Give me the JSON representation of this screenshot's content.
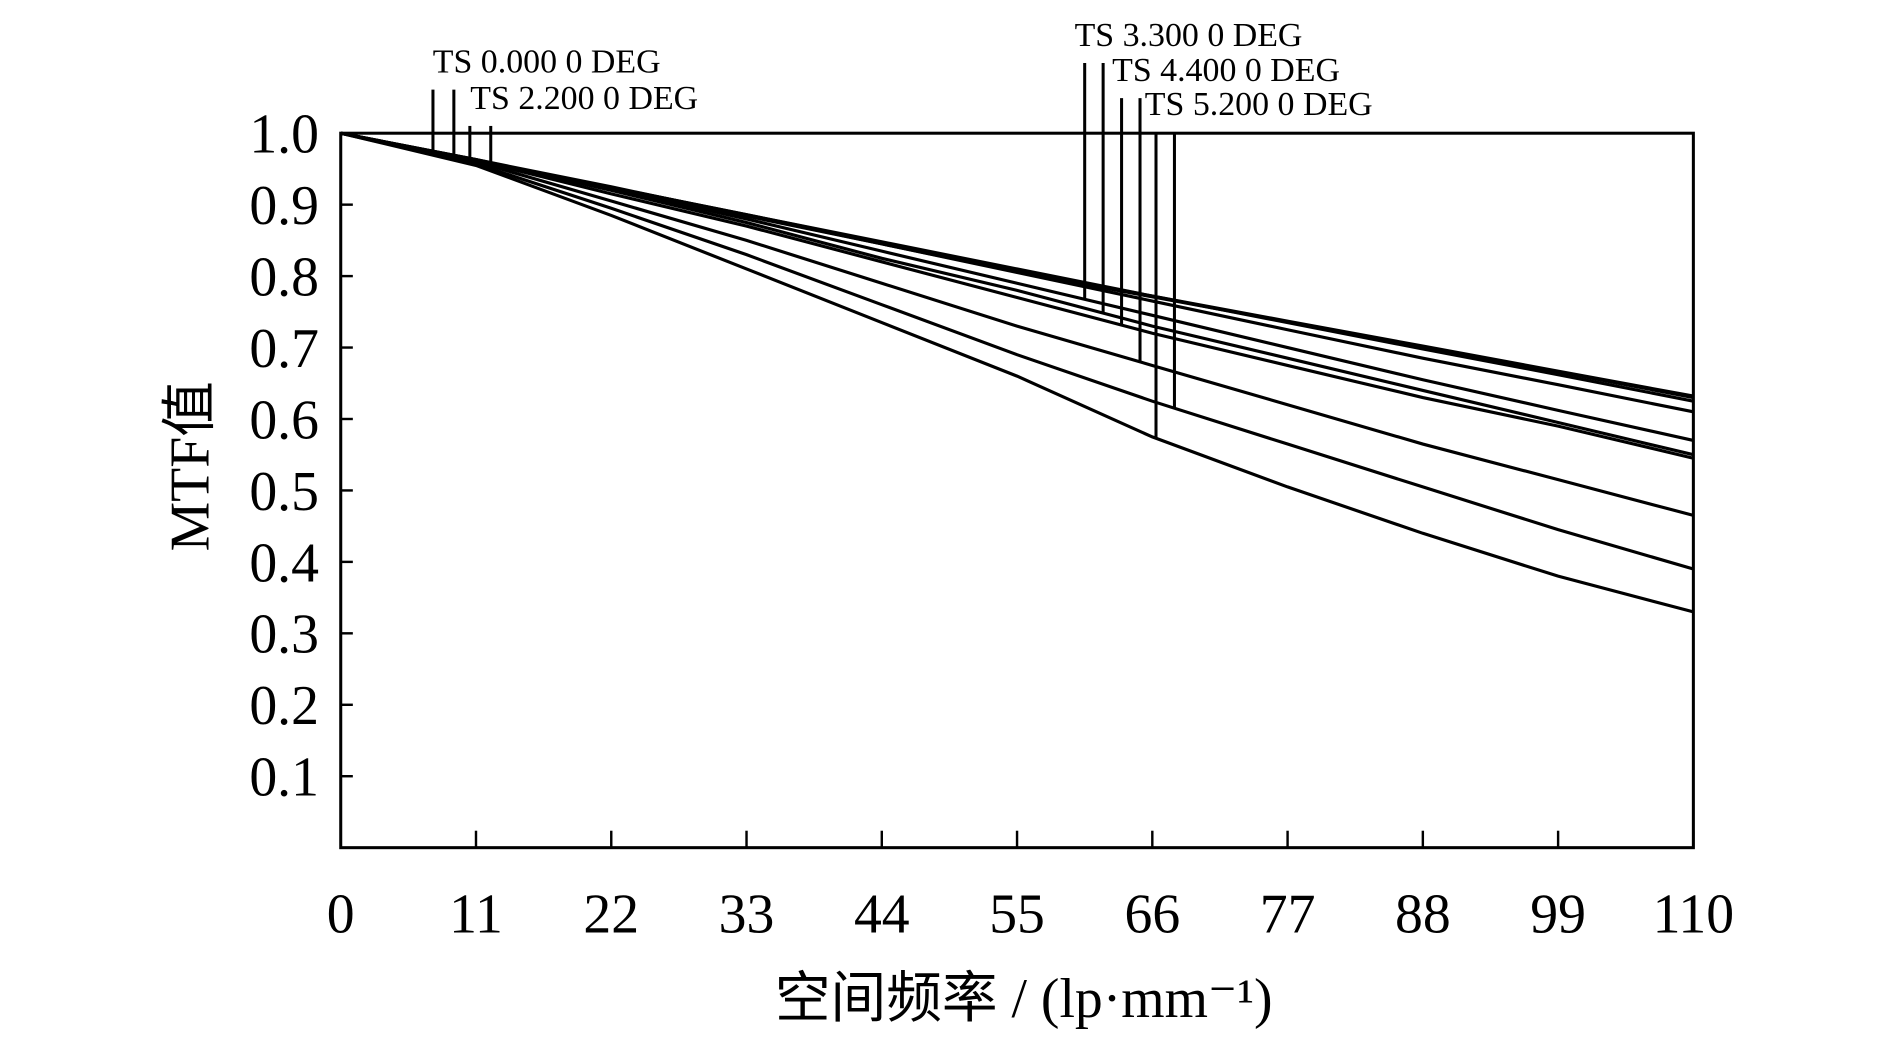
{
  "chart_data": {
    "type": "line",
    "xlabel": "空间频率 / (lp·mm⁻¹)",
    "ylabel": "MTF值",
    "x": [
      0,
      11,
      22,
      33,
      44,
      55,
      66,
      77,
      88,
      99,
      110
    ],
    "xlim": [
      0,
      110
    ],
    "ylim": [
      0,
      1
    ],
    "xticks": [
      0,
      11,
      22,
      33,
      44,
      55,
      66,
      77,
      88,
      99,
      110
    ],
    "yticks": [
      0.1,
      0.2,
      0.3,
      0.4,
      0.5,
      0.6,
      0.7,
      0.8,
      0.9,
      {
        "value": 1,
        "label": "1.0"
      }
    ],
    "series": [
      {
        "name": "TS 0.000 0 DEG",
        "color": "#000000",
        "tangential": [
          1,
          0.962,
          0.923,
          0.884,
          0.845,
          0.806,
          0.771,
          0.736,
          0.701,
          0.666,
          0.63
        ],
        "sagittal": [
          1,
          0.962,
          0.924,
          0.886,
          0.847,
          0.808,
          0.772,
          0.737,
          0.702,
          0.667,
          0.632
        ]
      },
      {
        "name": "TS 2.200 0 DEG",
        "color": "#000000",
        "tangential": [
          1,
          0.962,
          0.924,
          0.886,
          0.848,
          0.81,
          0.772,
          0.735,
          0.698,
          0.662,
          0.625
        ],
        "sagittal": [
          1,
          0.963,
          0.925,
          0.885,
          0.845,
          0.805,
          0.765,
          0.725,
          0.685,
          0.648,
          0.61
        ]
      },
      {
        "name": "TS 3.300 0 DEG",
        "color": "#000000",
        "tangential": [
          1,
          0.963,
          0.922,
          0.88,
          0.835,
          0.79,
          0.745,
          0.7,
          0.655,
          0.612,
          0.57
        ],
        "sagittal": [
          1,
          0.963,
          0.92,
          0.875,
          0.825,
          0.78,
          0.73,
          0.685,
          0.64,
          0.595,
          0.55
        ]
      },
      {
        "name": "TS 4.400 0 DEG",
        "color": "#000000",
        "tangential": [
          1,
          0.962,
          0.915,
          0.87,
          0.82,
          0.77,
          0.72,
          0.675,
          0.63,
          0.59,
          0.545
        ],
        "sagittal": [
          1,
          0.96,
          0.905,
          0.85,
          0.79,
          0.73,
          0.675,
          0.62,
          0.565,
          0.515,
          0.465
        ]
      },
      {
        "name": "TS 5.200 0 DEG",
        "color": "#000000",
        "tangential": [
          1,
          0.955,
          0.885,
          0.81,
          0.735,
          0.66,
          0.575,
          0.505,
          0.44,
          0.38,
          0.33
        ],
        "sagittal": [
          1,
          0.957,
          0.895,
          0.83,
          0.76,
          0.69,
          0.625,
          0.565,
          0.505,
          0.445,
          0.39
        ]
      }
    ]
  }
}
